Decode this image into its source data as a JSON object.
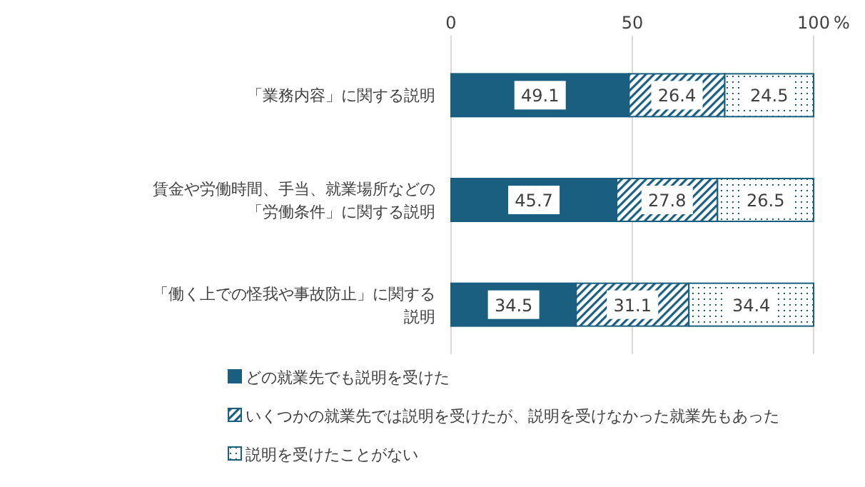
{
  "chart_data": {
    "type": "bar",
    "orientation": "horizontal",
    "stacked": true,
    "xlabel": "%",
    "categories": [
      "「業務内容」に関する説明",
      "賃金や労働時間、手当、就業場所などの「労働条件」に関する説明",
      "「働く上での怪我や事故防止」に関する説明"
    ],
    "series": [
      {
        "name": "どの就業先でも説明を受けた",
        "color": "#1a5f80",
        "values": [
          49.1,
          45.7,
          34.5
        ]
      },
      {
        "name": "いくつかの就業先では説明を受けたが、説明を受けなかった就業先もあった",
        "color": "#1a5f80",
        "values": [
          26.4,
          27.8,
          31.1
        ]
      },
      {
        "name": "説明を受けたことがない",
        "color": "#1a5f80",
        "values": [
          24.5,
          26.5,
          34.4
        ]
      }
    ],
    "xlim": [
      0,
      100
    ],
    "xticks": [
      0,
      50,
      100
    ],
    "grid": "x",
    "data_labels": true,
    "legend": "bottom left"
  }
}
